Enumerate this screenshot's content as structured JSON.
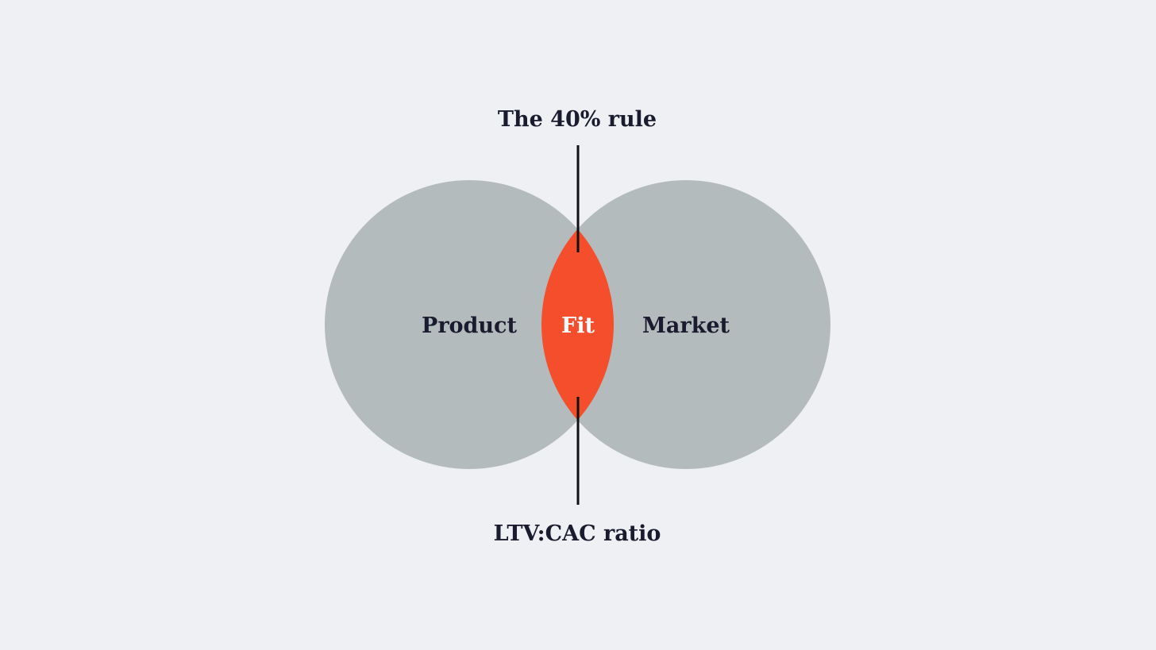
{
  "diagram": {
    "top_label": "The 40% rule",
    "bottom_label": "LTV:CAC ratio",
    "left_circle_label": "Product",
    "right_circle_label": "Market",
    "intersection_label": "Fit"
  },
  "colors": {
    "background": "#eef0f3",
    "circle": "#b4bbbc",
    "intersection": "#f44e2c",
    "text_dark": "#1a1b2e",
    "text_light": "#ffffff",
    "line": "#111111"
  }
}
